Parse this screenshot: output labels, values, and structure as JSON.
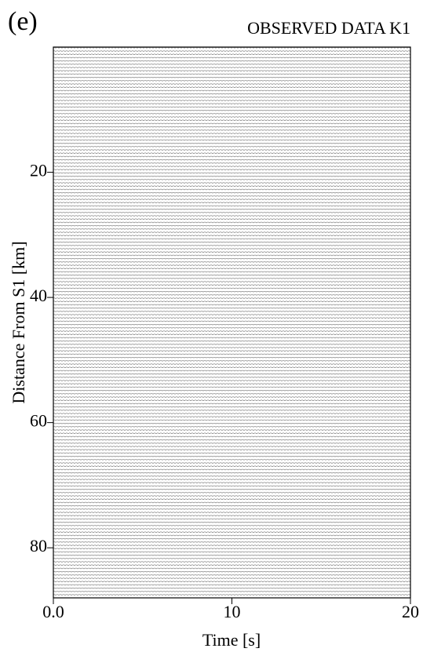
{
  "chart_data": {
    "type": "seismogram",
    "title": "OBSERVED DATA K1",
    "panel_label": "(e)",
    "x_label": "Time [s]",
    "y_label": "Distance From S1 [km]",
    "xlim": [
      0,
      20
    ],
    "xticks": [
      {
        "value": 0,
        "label": "0.0"
      },
      10,
      20
    ],
    "ylim": [
      88,
      0
    ],
    "yticks": [
      20,
      40,
      60,
      80
    ]
  }
}
